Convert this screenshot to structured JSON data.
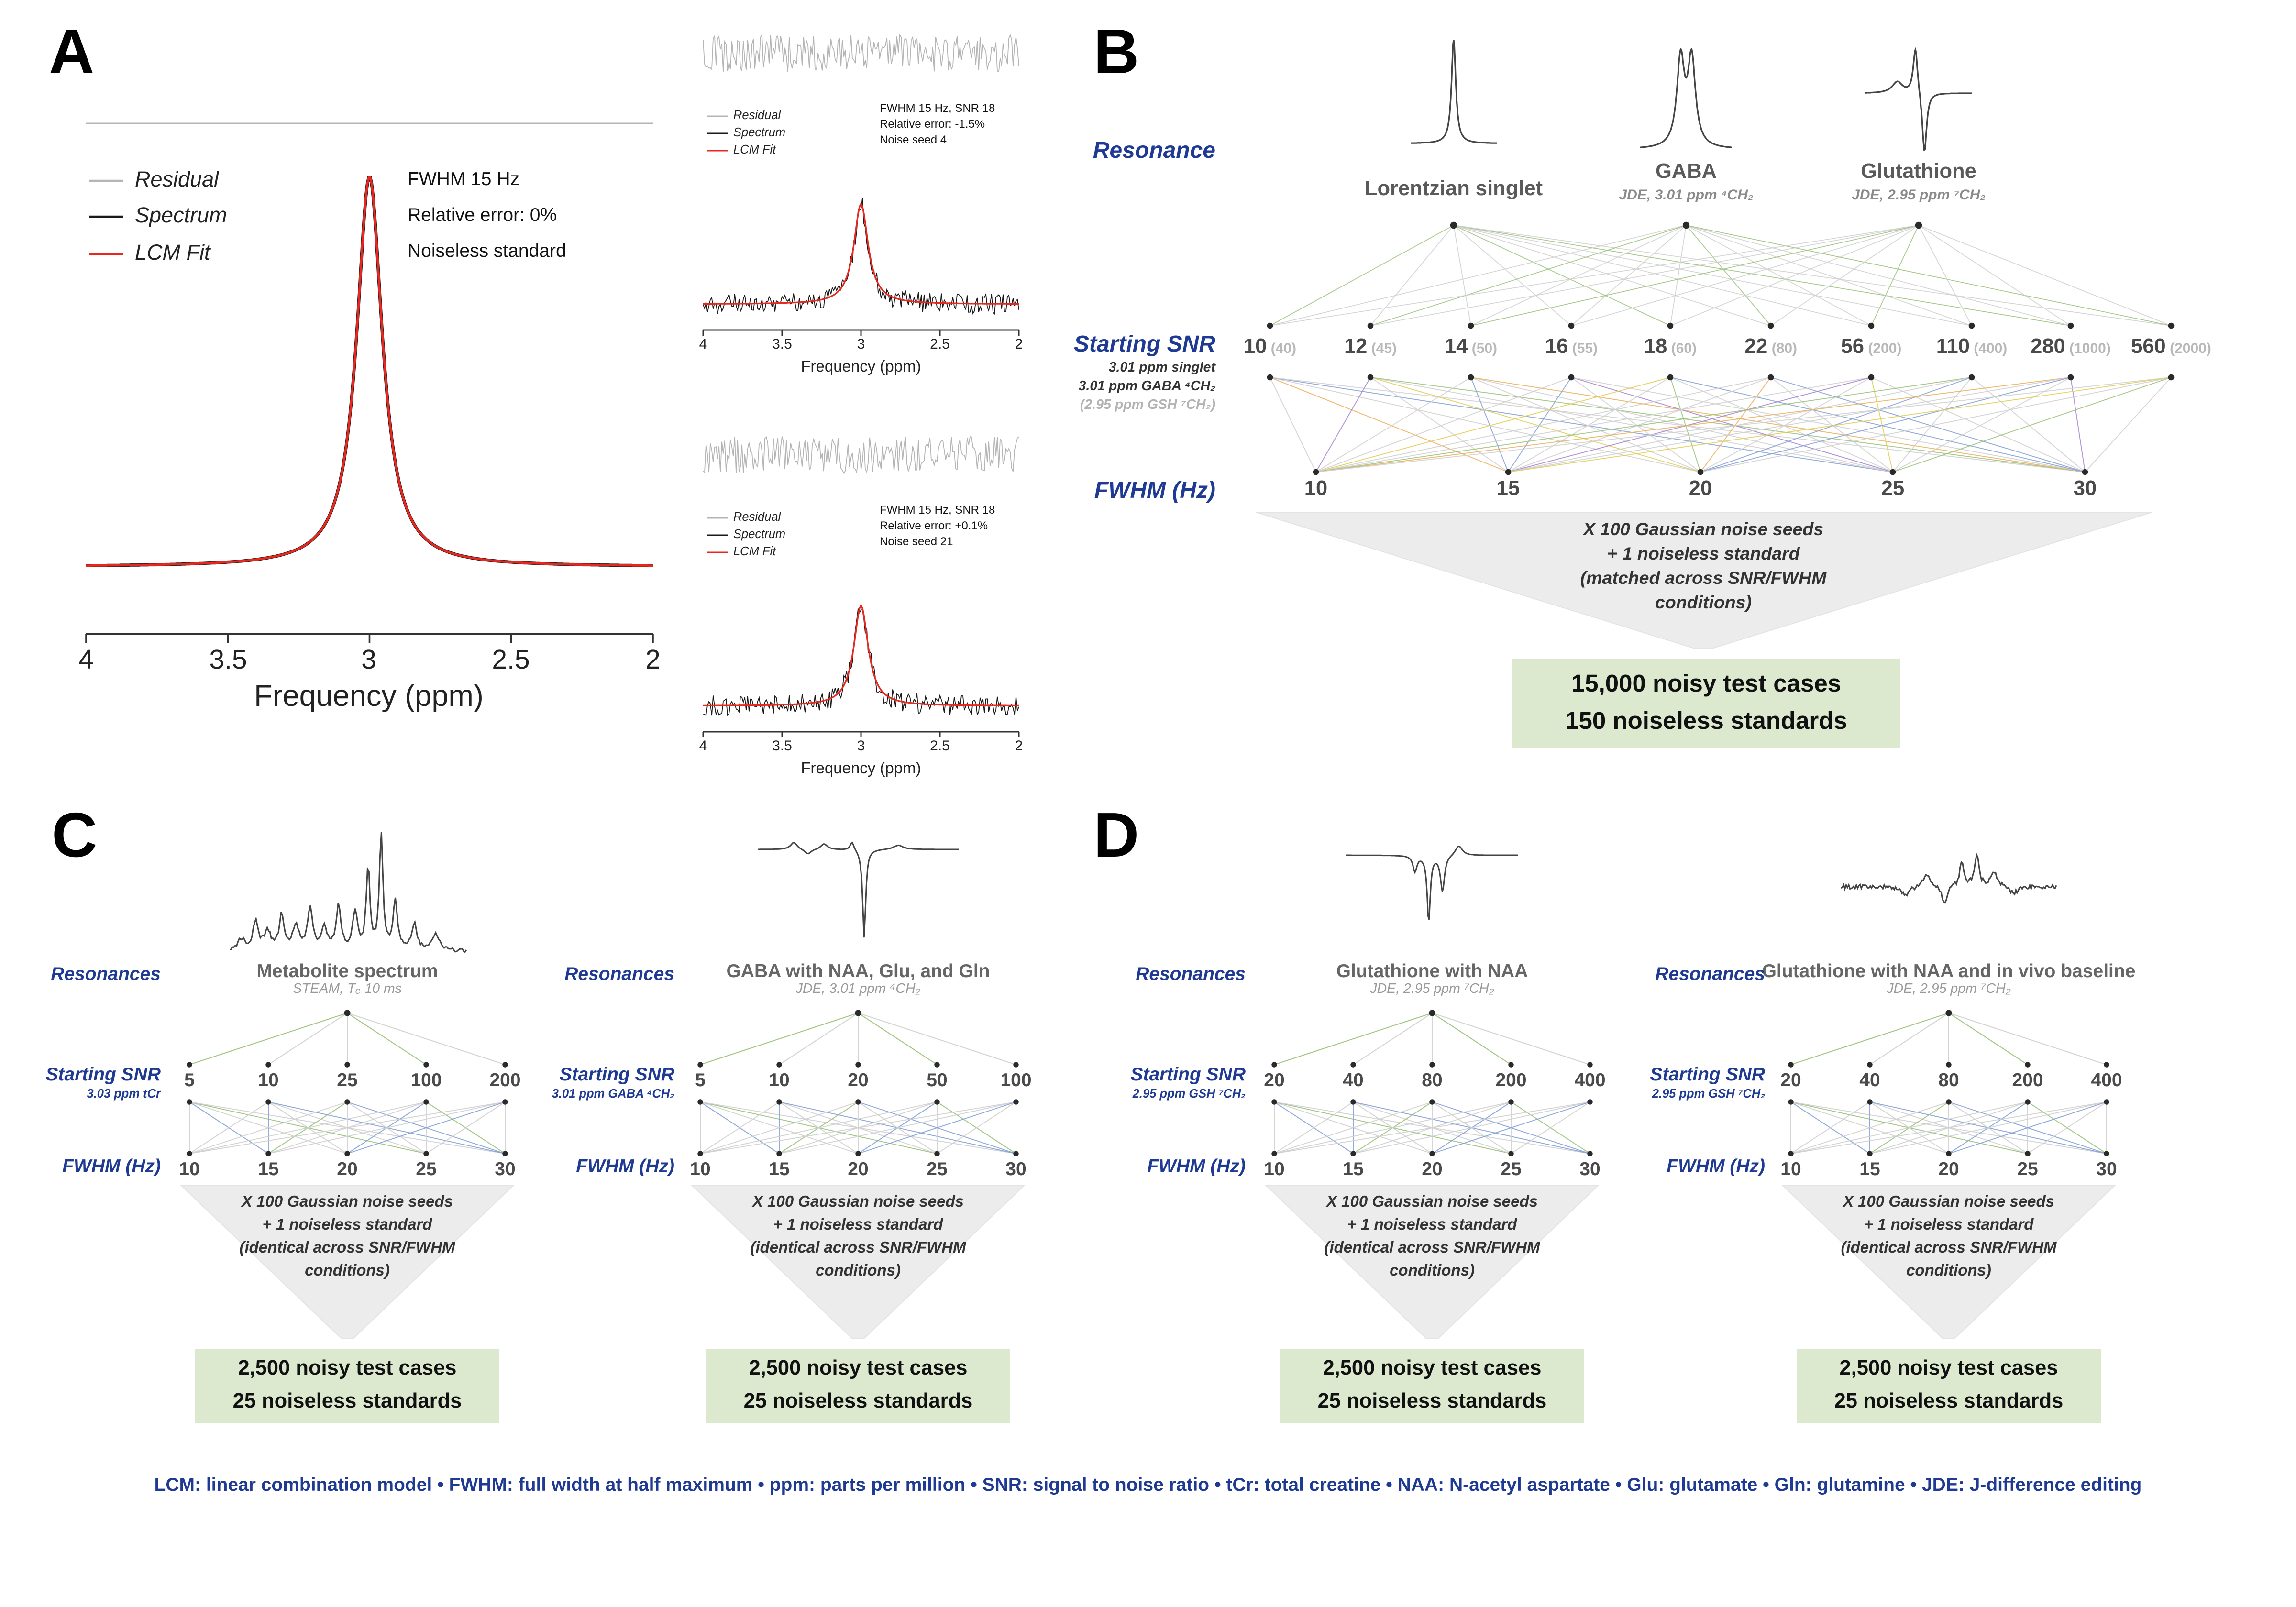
{
  "colors": {
    "accent_blue": "#1F3A93",
    "fit_red": "#E8281E",
    "residual_gray": "#B5B5B5",
    "spectrum_black": "#1A1A1A",
    "result_green_bg": "#DCE9CF",
    "funnel_gray": "#ECECEC",
    "line_gray": "#D0D0D0",
    "line_green": "#9CC27A",
    "line_blue": "#85A1D6",
    "line_orange": "#EFAF5A",
    "line_yellow": "#E2CE55",
    "line_purple": "#A884D2"
  },
  "panelA": {
    "label": "A",
    "legend": [
      "Residual",
      "Spectrum",
      "LCM Fit"
    ],
    "main_annotation": [
      "FWHM 15 Hz",
      "Relative error: 0%",
      "Noiseless standard"
    ],
    "x_ticks": [
      "4",
      "3.5",
      "3",
      "2.5",
      "2"
    ],
    "x_label": "Frequency (ppm)",
    "small_plots": [
      {
        "annotation": [
          "FWHM 15 Hz, SNR 18",
          "Relative error: -1.5%",
          "Noise seed 4"
        ]
      },
      {
        "annotation": [
          "FWHM 15 Hz, SNR 18",
          "Relative error: +0.1%",
          "Noise seed 21"
        ]
      }
    ]
  },
  "panelB": {
    "label": "B",
    "resonance_row_label": "Resonance",
    "snr_row_label": "Starting SNR",
    "snr_sublabels": [
      "3.01 ppm singlet",
      "3.01 ppm GABA ⁴CH₂",
      "(2.95 ppm GSH ⁷CH₂)"
    ],
    "fwhm_row_label": "FWHM (Hz)",
    "resonances": [
      {
        "name": "Lorentzian singlet",
        "sub": "",
        "shape": "singlet"
      },
      {
        "name": "GABA",
        "sub": "JDE, 3.01 ppm ⁴CH₂",
        "shape": "gaba"
      },
      {
        "name": "Glutathione",
        "sub": "JDE, 2.95 ppm ⁷CH₂",
        "shape": "gsh"
      }
    ],
    "snr_values": [
      {
        "main": "10",
        "alt": "(40)"
      },
      {
        "main": "12",
        "alt": "(45)"
      },
      {
        "main": "14",
        "alt": "(50)"
      },
      {
        "main": "16",
        "alt": "(55)"
      },
      {
        "main": "18",
        "alt": "(60)"
      },
      {
        "main": "22",
        "alt": "(80)"
      },
      {
        "main": "56",
        "alt": "(200)"
      },
      {
        "main": "110",
        "alt": "(400)"
      },
      {
        "main": "280",
        "alt": "(1000)"
      },
      {
        "main": "560",
        "alt": "(2000)"
      }
    ],
    "fwhm_values": [
      "10",
      "15",
      "20",
      "25",
      "30"
    ],
    "funnel": [
      "X 100 Gaussian noise seeds",
      "+ 1 noiseless standard",
      "(matched across SNR/FWHM",
      "conditions)"
    ],
    "result": [
      "15,000 noisy test cases",
      "150 noiseless standards"
    ]
  },
  "panelC_label": "C",
  "panelD_label": "D",
  "cascades": [
    {
      "panel": "C",
      "resonances_label": "Resonances",
      "snr_label": "Starting SNR",
      "snr_sublabel": "3.03 ppm tCr",
      "fwhm_label": "FWHM (Hz)",
      "title": "Metabolite spectrum",
      "subtitle": "STEAM, Tₑ 10 ms",
      "shape": "metab",
      "snr_values": [
        "5",
        "10",
        "25",
        "100",
        "200"
      ],
      "fwhm_values": [
        "10",
        "15",
        "20",
        "25",
        "30"
      ],
      "funnel": [
        "X 100 Gaussian noise seeds",
        "+ 1 noiseless standard",
        "(identical across SNR/FWHM",
        "conditions)"
      ],
      "result": [
        "2,500 noisy test cases",
        "25 noiseless standards"
      ]
    },
    {
      "panel": "C",
      "resonances_label": "Resonances",
      "snr_label": "Starting SNR",
      "snr_sublabel": "3.01 ppm GABA ⁴CH₂",
      "fwhm_label": "FWHM (Hz)",
      "title": "GABA with NAA, Glu, and Gln",
      "subtitle": "JDE, 3.01 ppm ⁴CH₂",
      "shape": "gaba_jde",
      "snr_values": [
        "5",
        "10",
        "20",
        "50",
        "100"
      ],
      "fwhm_values": [
        "10",
        "15",
        "20",
        "25",
        "30"
      ],
      "funnel": [
        "X 100 Gaussian noise seeds",
        "+ 1 noiseless standard",
        "(identical across SNR/FWHM",
        "conditions)"
      ],
      "result": [
        "2,500 noisy test cases",
        "25 noiseless standards"
      ]
    },
    {
      "panel": "D",
      "resonances_label": "Resonances",
      "snr_label": "Starting SNR",
      "snr_sublabel": "2.95 ppm GSH ⁷CH₂",
      "fwhm_label": "FWHM (Hz)",
      "title": "Glutathione with NAA",
      "subtitle": "JDE, 2.95 ppm ⁷CH₂",
      "shape": "gsh_naa",
      "snr_values": [
        "20",
        "40",
        "80",
        "200",
        "400"
      ],
      "fwhm_values": [
        "10",
        "15",
        "20",
        "25",
        "30"
      ],
      "funnel": [
        "X 100 Gaussian noise seeds",
        "+ 1 noiseless standard",
        "(identical across SNR/FWHM",
        "conditions)"
      ],
      "result": [
        "2,500 noisy test cases",
        "25 noiseless standards"
      ]
    },
    {
      "panel": "D",
      "resonances_label": "Resonances",
      "snr_label": "Starting SNR",
      "snr_sublabel": "2.95 ppm GSH ⁷CH₂",
      "fwhm_label": "FWHM (Hz)",
      "title": "Glutathione with NAA and in vivo baseline",
      "subtitle": "JDE, 2.95 ppm ⁷CH₂",
      "shape": "gsh_base",
      "snr_values": [
        "20",
        "40",
        "80",
        "200",
        "400"
      ],
      "fwhm_values": [
        "10",
        "15",
        "20",
        "25",
        "30"
      ],
      "funnel": [
        "X 100 Gaussian noise seeds",
        "+ 1 noiseless standard",
        "(identical across SNR/FWHM",
        "conditions)"
      ],
      "result": [
        "2,500 noisy test cases",
        "25 noiseless standards"
      ]
    }
  ],
  "footer": "LCM: linear combination model • FWHM: full width at half maximum • ppm: parts per million • SNR: signal to noise ratio • tCr: total creatine • NAA: N-acetyl aspartate • Glu: glutamate • Gln: glutamine • JDE: J-difference editing"
}
